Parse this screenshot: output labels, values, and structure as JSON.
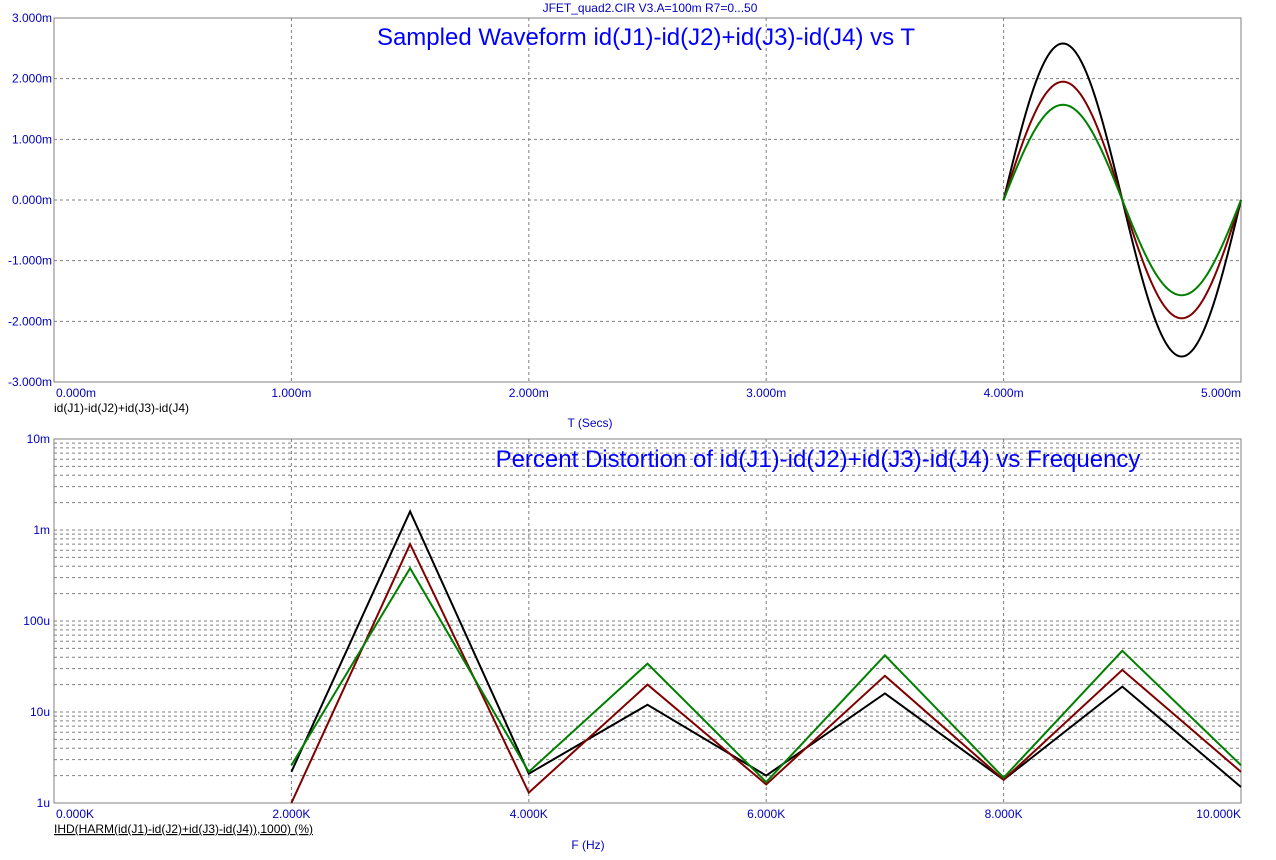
{
  "header": {
    "title": "JFET_quad2.CIR V3.A=100m R7=0...50"
  },
  "chart_data": [
    {
      "type": "line",
      "title": "Sampled Waveform  id(J1)-id(J2)+id(J3)-id(J4) vs T",
      "xlabel": "T (Secs)",
      "ylabel": "",
      "expression_label": "id(J1)-id(J2)+id(J3)-id(J4)",
      "xlim": [
        0,
        0.005
      ],
      "ylim": [
        -0.003,
        0.003
      ],
      "xticks": [
        0,
        0.001,
        0.002,
        0.003,
        0.004,
        0.005
      ],
      "xtick_labels": [
        "0.000m",
        "1.000m",
        "2.000m",
        "3.000m",
        "4.000m",
        "5.000m"
      ],
      "yticks": [
        0.003,
        0.002,
        0.001,
        0,
        -0.001,
        -0.002,
        -0.003
      ],
      "ytick_labels": [
        "3.000m",
        "2.000m",
        "1.000m",
        "0.000m",
        "-1.000m",
        "-2.000m",
        "-3.000m"
      ],
      "grid": true,
      "series": [
        {
          "color": "#000000",
          "waveform": "sine",
          "t_start": 0.004,
          "t_end": 0.005,
          "amplitude": 0.00258
        },
        {
          "color": "#800000",
          "waveform": "sine",
          "t_start": 0.004,
          "t_end": 0.005,
          "amplitude": 0.00195
        },
        {
          "color": "#008000",
          "waveform": "sine",
          "t_start": 0.004,
          "t_end": 0.005,
          "amplitude": 0.00157
        }
      ]
    },
    {
      "type": "line",
      "title": "Percent Distortion of id(J1)-id(J2)+id(J3)-id(J4) vs Frequency",
      "xlabel": "F (Hz)",
      "ylabel": "",
      "expression_label": "IHD(HARM(id(J1)-id(J2)+id(J3)-id(J4)),1000) (%)",
      "xlim": [
        0,
        10000
      ],
      "ylim": [
        1e-06,
        0.01
      ],
      "yscale": "log",
      "xticks": [
        0,
        2000,
        4000,
        6000,
        8000,
        10000
      ],
      "xtick_labels": [
        "0.000K",
        "2.000K",
        "4.000K",
        "6.000K",
        "8.000K",
        "10.000K"
      ],
      "yticks": [
        0.01,
        0.001,
        0.0001,
        1e-05,
        1e-06
      ],
      "ytick_labels": [
        "10m",
        "1m",
        "100u",
        "10u",
        "1u"
      ],
      "grid": true,
      "x": [
        2000,
        3000,
        4000,
        5000,
        6000,
        7000,
        8000,
        9000,
        10000
      ],
      "series": [
        {
          "color": "#000000",
          "values": [
            2.2e-06,
            0.0016,
            2.1e-06,
            1.2e-05,
            2e-06,
            1.6e-05,
            1.8e-06,
            1.9e-05,
            1.5e-06
          ]
        },
        {
          "color": "#800000",
          "values": [
            1e-06,
            0.0007,
            1.3e-06,
            2e-05,
            1.6e-06,
            2.5e-05,
            1.8e-06,
            2.9e-05,
            2.2e-06
          ]
        },
        {
          "color": "#008000",
          "values": [
            2.6e-06,
            0.00038,
            2.2e-06,
            3.4e-05,
            1.7e-06,
            4.2e-05,
            1.9e-06,
            4.7e-05,
            2.6e-06
          ]
        }
      ]
    }
  ]
}
